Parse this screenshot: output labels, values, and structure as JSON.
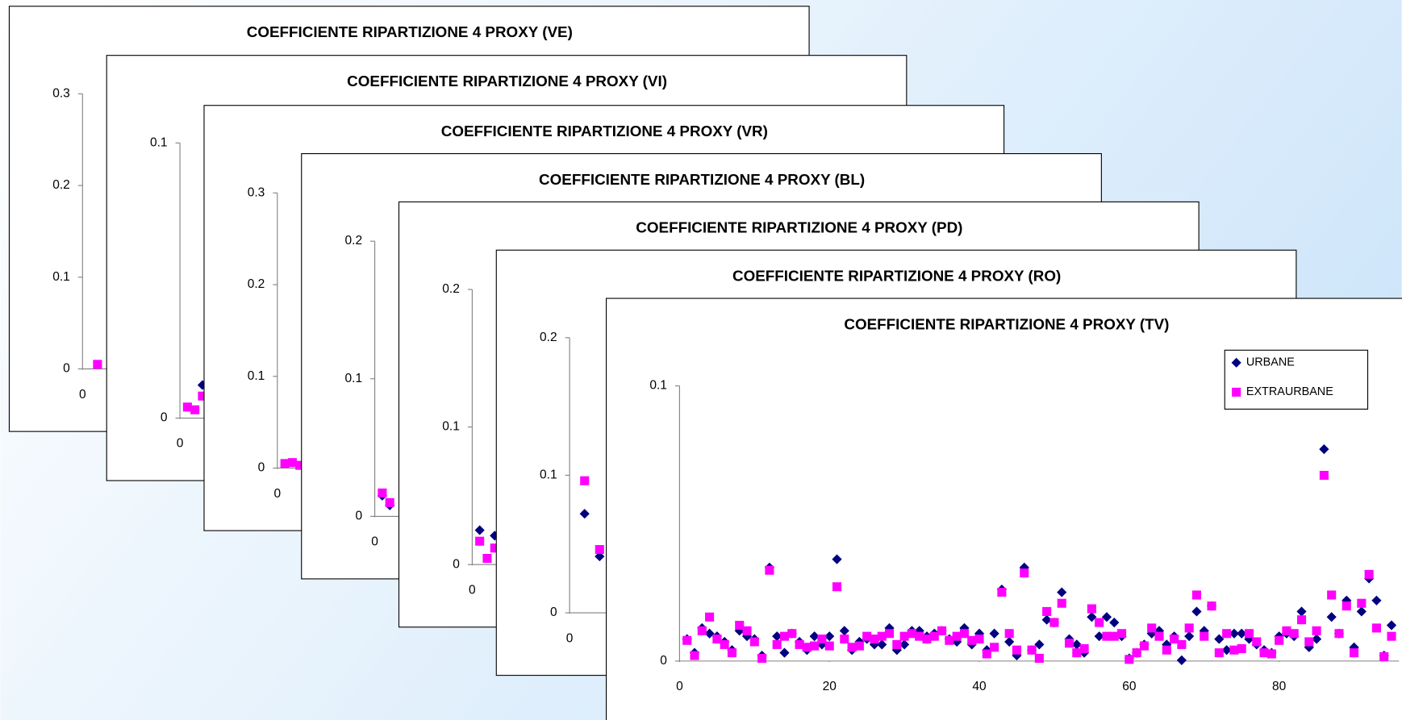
{
  "chart_data": [
    {
      "type": "scatter",
      "title": "COEFFICIENTE RIPARTIZIONE 4 PROXY (VE)",
      "xlim": [
        0,
        96
      ],
      "xticks": [
        0
      ],
      "ylim": [
        0,
        0.3
      ],
      "yticks": [
        0,
        0.1,
        0.2,
        0.3
      ],
      "series": [
        {
          "color": "#ff00ff",
          "marker": "square",
          "x": [
            2
          ],
          "values": [
            0.005
          ]
        }
      ]
    },
    {
      "type": "scatter",
      "title": "COEFFICIENTE RIPARTIZIONE 4 PROXY (VI)",
      "xlim": [
        0,
        96
      ],
      "xticks": [
        0
      ],
      "ylim": [
        0,
        0.1
      ],
      "yticks": [
        0,
        0.1
      ],
      "series": [
        {
          "color": "#000080",
          "marker": "diamond",
          "x": [
            3
          ],
          "values": [
            0.012
          ]
        },
        {
          "color": "#ff00ff",
          "marker": "square",
          "x": [
            1,
            2,
            3
          ],
          "values": [
            0.004,
            0.003,
            0.008
          ]
        }
      ]
    },
    {
      "type": "scatter",
      "title": "COEFFICIENTE RIPARTIZIONE 4 PROXY (VR)",
      "xlim": [
        0,
        96
      ],
      "xticks": [
        0
      ],
      "ylim": [
        0,
        0.3
      ],
      "yticks": [
        0,
        0.1,
        0.2,
        0.3
      ],
      "series": [
        {
          "color": "#ff00ff",
          "marker": "square",
          "x": [
            1,
            2,
            3
          ],
          "values": [
            0.005,
            0.006,
            0.003
          ]
        }
      ]
    },
    {
      "type": "scatter",
      "title": "COEFFICIENTE RIPARTIZIONE 4 PROXY (BL)",
      "xlim": [
        0,
        96
      ],
      "xticks": [
        0
      ],
      "ylim": [
        0,
        0.2
      ],
      "yticks": [
        0,
        0.1,
        0.2
      ],
      "series": [
        {
          "color": "#000080",
          "marker": "diamond",
          "x": [
            1,
            2
          ],
          "values": [
            0.015,
            0.008
          ]
        },
        {
          "color": "#ff00ff",
          "marker": "square",
          "x": [
            1,
            2
          ],
          "values": [
            0.017,
            0.01
          ]
        }
      ]
    },
    {
      "type": "scatter",
      "title": "COEFFICIENTE RIPARTIZIONE 4 PROXY (PD)",
      "xlim": [
        0,
        96
      ],
      "xticks": [
        0
      ],
      "ylim": [
        0,
        0.2
      ],
      "yticks": [
        0,
        0.1,
        0.2
      ],
      "series": [
        {
          "color": "#000080",
          "marker": "diamond",
          "x": [
            1,
            3
          ],
          "values": [
            0.025,
            0.021
          ]
        },
        {
          "color": "#ff00ff",
          "marker": "square",
          "x": [
            1,
            2,
            3
          ],
          "values": [
            0.017,
            0.0045,
            0.012
          ]
        }
      ]
    },
    {
      "type": "scatter",
      "title": "COEFFICIENTE RIPARTIZIONE 4 PROXY (RO)",
      "xlim": [
        0,
        96
      ],
      "xticks": [
        0
      ],
      "ylim": [
        0,
        0.2
      ],
      "yticks": [
        0,
        0.1,
        0.2
      ],
      "series": [
        {
          "color": "#000080",
          "marker": "diamond",
          "x": [
            2,
            4
          ],
          "values": [
            0.072,
            0.041
          ]
        },
        {
          "color": "#ff00ff",
          "marker": "square",
          "x": [
            2,
            4
          ],
          "values": [
            0.096,
            0.046
          ]
        }
      ]
    },
    {
      "type": "scatter",
      "title": "COEFFICIENTE RIPARTIZIONE 4 PROXY (TV)",
      "xlim": [
        0,
        96
      ],
      "xticks": [
        0,
        20,
        40,
        60,
        80
      ],
      "ylim": [
        0,
        0.1
      ],
      "yticks": [
        0,
        0.1
      ],
      "legend": "upper right",
      "series": [
        {
          "name": "URBANE",
          "color": "#000080",
          "marker": "diamond",
          "x": [
            1,
            2,
            3,
            4,
            5,
            6,
            7,
            8,
            9,
            10,
            11,
            12,
            13,
            14,
            15,
            16,
            17,
            18,
            19,
            20,
            21,
            22,
            23,
            24,
            25,
            26,
            27,
            28,
            29,
            30,
            31,
            32,
            33,
            34,
            35,
            36,
            37,
            38,
            39,
            40,
            41,
            42,
            43,
            44,
            45,
            46,
            47,
            48,
            49,
            50,
            51,
            52,
            53,
            54,
            55,
            56,
            57,
            58,
            59,
            60,
            61,
            62,
            63,
            64,
            65,
            66,
            67,
            68,
            69,
            70,
            71,
            72,
            73,
            74,
            75,
            76,
            77,
            78,
            79,
            80,
            81,
            82,
            83,
            84,
            85,
            86,
            87,
            88,
            89,
            90,
            91,
            92,
            93,
            94,
            95
          ],
          "values": [
            0.008,
            0.003,
            0.012,
            0.01,
            0.009,
            0.007,
            0.004,
            0.011,
            0.009,
            0.008,
            0.002,
            0.034,
            0.009,
            0.003,
            0.01,
            0.007,
            0.004,
            0.009,
            0.006,
            0.009,
            0.037,
            0.011,
            0.004,
            0.007,
            0.008,
            0.006,
            0.006,
            0.012,
            0.004,
            0.006,
            0.011,
            0.011,
            0.009,
            0.01,
            0.011,
            0.008,
            0.007,
            0.012,
            0.006,
            0.01,
            0.004,
            0.01,
            0.026,
            0.007,
            0.002,
            0.034,
            0.004,
            0.006,
            0.015,
            0.014,
            0.025,
            0.008,
            0.006,
            0.003,
            0.016,
            0.009,
            0.016,
            0.014,
            0.009,
            0.001,
            0.003,
            0.006,
            0.01,
            0.011,
            0.006,
            0.009,
            0.0003,
            0.009,
            0.018,
            0.011,
            0.02,
            0.008,
            0.004,
            0.01,
            0.01,
            0.008,
            0.006,
            0.004,
            0.003,
            0.009,
            0.01,
            0.009,
            0.018,
            0.005,
            0.008,
            0.077,
            0.016,
            0.01,
            0.022,
            0.005,
            0.018,
            0.03,
            0.022,
            0.002,
            0.013
          ]
        },
        {
          "name": "EXTRAURBANE",
          "color": "#ff00ff",
          "marker": "square",
          "x": [
            1,
            2,
            3,
            4,
            5,
            6,
            7,
            8,
            9,
            10,
            11,
            12,
            13,
            14,
            15,
            16,
            17,
            18,
            19,
            20,
            21,
            22,
            23,
            24,
            25,
            26,
            27,
            28,
            29,
            30,
            31,
            32,
            33,
            34,
            35,
            36,
            37,
            38,
            39,
            40,
            41,
            42,
            43,
            44,
            45,
            46,
            47,
            48,
            49,
            50,
            51,
            52,
            53,
            54,
            55,
            56,
            57,
            58,
            59,
            60,
            61,
            62,
            63,
            64,
            65,
            66,
            67,
            68,
            69,
            70,
            71,
            72,
            73,
            74,
            75,
            76,
            77,
            78,
            79,
            80,
            81,
            82,
            83,
            84,
            85,
            86,
            87,
            88,
            89,
            90,
            91,
            92,
            93,
            94,
            95
          ],
          "values": [
            0.0075,
            0.002,
            0.011,
            0.016,
            0.008,
            0.006,
            0.003,
            0.013,
            0.011,
            0.007,
            0.001,
            0.033,
            0.006,
            0.009,
            0.01,
            0.006,
            0.005,
            0.0055,
            0.008,
            0.0055,
            0.027,
            0.008,
            0.005,
            0.0055,
            0.009,
            0.008,
            0.009,
            0.01,
            0.006,
            0.009,
            0.01,
            0.009,
            0.008,
            0.009,
            0.011,
            0.0075,
            0.009,
            0.01,
            0.0075,
            0.008,
            0.0026,
            0.005,
            0.025,
            0.01,
            0.004,
            0.032,
            0.004,
            0.001,
            0.018,
            0.014,
            0.021,
            0.0065,
            0.003,
            0.0045,
            0.019,
            0.014,
            0.009,
            0.009,
            0.01,
            0.0006,
            0.003,
            0.0055,
            0.012,
            0.009,
            0.004,
            0.008,
            0.006,
            0.012,
            0.024,
            0.009,
            0.02,
            0.003,
            0.01,
            0.004,
            0.0045,
            0.01,
            0.007,
            0.003,
            0.0026,
            0.0075,
            0.011,
            0.01,
            0.015,
            0.007,
            0.011,
            0.0675,
            0.024,
            0.01,
            0.02,
            0.003,
            0.021,
            0.0315,
            0.012,
            0.0016,
            0.009
          ]
        }
      ]
    }
  ]
}
